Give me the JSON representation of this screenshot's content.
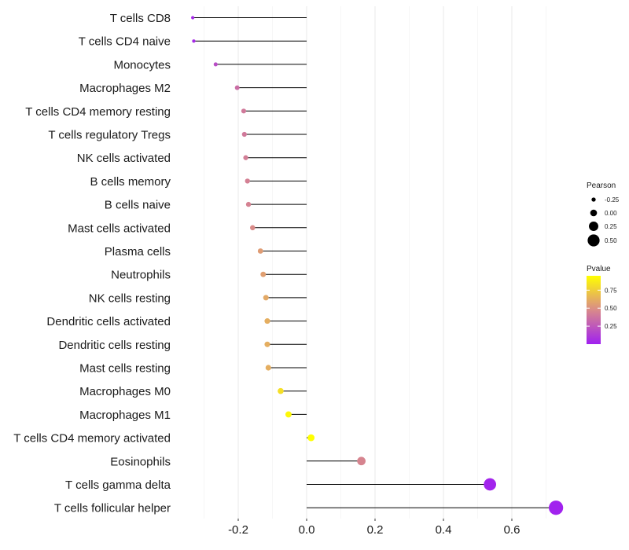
{
  "chart_data": {
    "type": "lollipop",
    "categories": [
      "T cells CD8",
      "T cells CD4 naive",
      "Monocytes",
      "Macrophages M2",
      "T cells CD4 memory resting",
      "T cells regulatory  Tregs",
      "NK cells activated",
      "B cells memory",
      "B cells naive",
      "Mast cells activated",
      "Plasma cells",
      "Neutrophils",
      "NK cells resting",
      "Dendritic cells activated",
      "Dendritic cells resting",
      "Mast cells resting",
      "Macrophages M0",
      "Macrophages M1",
      "T cells CD4 memory activated",
      "Eosinophils",
      "T cells gamma delta",
      "T cells follicular helper"
    ],
    "values": [
      -0.333,
      -0.33,
      -0.266,
      -0.203,
      -0.184,
      -0.182,
      -0.178,
      -0.173,
      -0.17,
      -0.158,
      -0.135,
      -0.127,
      -0.119,
      -0.115,
      -0.115,
      -0.112,
      -0.076,
      -0.053,
      0.013,
      0.16,
      0.536,
      0.729
    ],
    "pvalues": [
      0.04,
      0.04,
      0.2,
      0.35,
      0.4,
      0.4,
      0.42,
      0.43,
      0.44,
      0.48,
      0.55,
      0.56,
      0.6,
      0.62,
      0.62,
      0.62,
      0.82,
      0.92,
      0.99,
      0.45,
      0.02,
      0.01
    ],
    "xlim": [
      -0.3,
      0.73
    ],
    "xticks": [
      -0.2,
      0.0,
      0.2,
      0.4,
      0.6
    ],
    "xtick_labels": [
      "-0.2",
      "0.0",
      "0.2",
      "0.4",
      "0.6"
    ],
    "legend_size": {
      "title": "Pearson",
      "values": [
        -0.25,
        0.0,
        0.25,
        0.5
      ],
      "labels": [
        "-0.25",
        "0.00",
        "0.25",
        "0.50"
      ]
    },
    "legend_color": {
      "title": "Pvalue",
      "ticks": [
        0.25,
        0.5,
        0.75
      ],
      "labels": [
        "0.25",
        "0.50",
        "0.75"
      ],
      "range": [
        0.0,
        0.95
      ],
      "low_color": "#a020f0",
      "mid_color": "#d98a8a",
      "high_color": "#ffff00"
    },
    "colors": {
      "stem": "#000000",
      "grid": "#ebebeb"
    }
  }
}
